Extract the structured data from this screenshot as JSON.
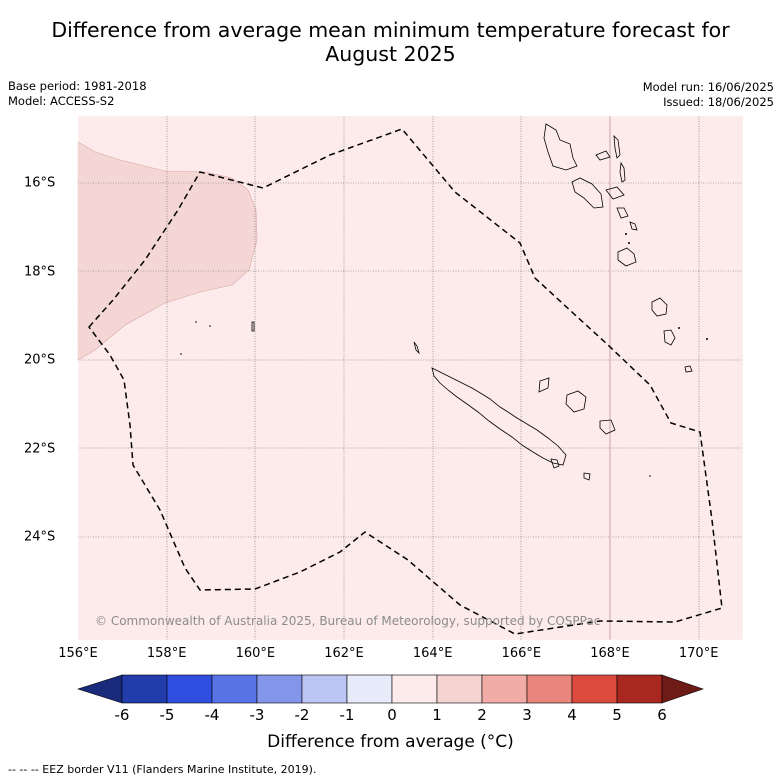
{
  "title_line1": "Difference from average mean minimum temperature forecast for",
  "title_line2": "August 2025",
  "base_period": "Base period: 1981-2018",
  "model": "Model: ACCESS-S2",
  "model_run": "Model run: 16/06/2025",
  "issued": "Issued: 18/06/2025",
  "copyright": "© Commonwealth of Australia 2025, Bureau of Meteorology, supported by COSPPac",
  "lon_labels": [
    "156°E",
    "158°E",
    "160°E",
    "162°E",
    "164°E",
    "166°E",
    "168°E",
    "170°E"
  ],
  "lat_labels": [
    "16°S",
    "18°S",
    "20°S",
    "22°S",
    "24°S"
  ],
  "colorbar": {
    "ticks": [
      "-6",
      "-5",
      "-4",
      "-3",
      "-2",
      "-1",
      "0",
      "1",
      "2",
      "3",
      "4",
      "5",
      "6"
    ],
    "colors": [
      "#1a2a7a",
      "#223cac",
      "#2f4fe0",
      "#5873e6",
      "#8496ea",
      "#bcc5f4",
      "#e8ebfa",
      "#fcebea",
      "#f5d3d1",
      "#f1aca7",
      "#e8857c",
      "#dc4a3e",
      "#a8271f",
      "#6e1a16"
    ],
    "label": "Difference from average (°C)"
  },
  "legend_line": "--  --  -- EEZ border V11 (Flanders Marine Institute, 2019).",
  "colors": {
    "background_class_0_1": "#fcebea",
    "region_class_1_2": "#f4d6d5"
  }
}
